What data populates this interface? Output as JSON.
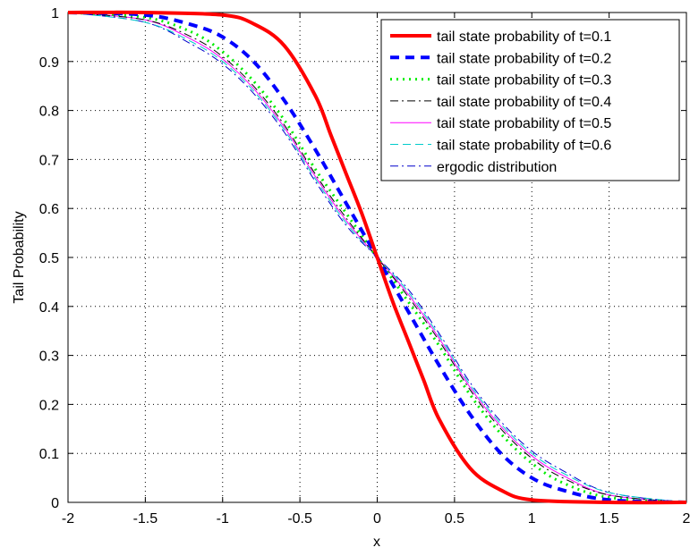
{
  "chart_data": {
    "type": "line",
    "title": "",
    "xlabel": "x",
    "ylabel": "Tail Probability",
    "xlim": [
      -2,
      2
    ],
    "ylim": [
      0,
      1
    ],
    "x_ticks": [
      -2,
      -1.5,
      -1,
      -0.5,
      0,
      0.5,
      1,
      1.5,
      2
    ],
    "y_ticks": [
      0,
      0.1,
      0.2,
      0.3,
      0.4,
      0.5,
      0.6,
      0.7,
      0.8,
      0.9,
      1
    ],
    "x_tick_labels": [
      "-2",
      "-1.5",
      "-1",
      "-0.5",
      "0",
      "0.5",
      "1",
      "1.5",
      "2"
    ],
    "y_tick_labels": [
      "0",
      "0.1",
      "0.2",
      "0.3",
      "0.4",
      "0.5",
      "0.6",
      "0.7",
      "0.8",
      "0.9",
      "1"
    ],
    "grid": true,
    "legend_position": "top-right",
    "series": [
      {
        "name": "tail state probability of t=0.1",
        "color": "#ff0000",
        "style": "solid",
        "x": [
          -2,
          -1.5,
          -1,
          -0.8,
          -0.6,
          -0.4,
          -0.3,
          -0.2,
          -0.1,
          0,
          0.1,
          0.2,
          0.3,
          0.4,
          0.6,
          0.8,
          1,
          1.5,
          2
        ],
        "y": [
          1,
          1,
          0.995,
          0.977,
          0.932,
          0.83,
          0.75,
          0.67,
          0.59,
          0.5,
          0.41,
          0.33,
          0.25,
          0.17,
          0.07,
          0.025,
          0.005,
          0,
          0
        ]
      },
      {
        "name": "tail state probability of t=0.2",
        "color": "#0000ff",
        "style": "dashed",
        "x": [
          -2,
          -1.5,
          -1.2,
          -1,
          -0.8,
          -0.6,
          -0.4,
          -0.2,
          0,
          0.2,
          0.4,
          0.6,
          0.8,
          1,
          1.2,
          1.5,
          2
        ],
        "y": [
          1,
          0.995,
          0.975,
          0.95,
          0.9,
          0.82,
          0.72,
          0.61,
          0.5,
          0.39,
          0.28,
          0.18,
          0.1,
          0.05,
          0.025,
          0.005,
          0
        ]
      },
      {
        "name": "tail state probability of t=0.3",
        "color": "#00ee00",
        "style": "dotted",
        "x": [
          -2,
          -1.5,
          -1.2,
          -1,
          -0.8,
          -0.6,
          -0.4,
          -0.2,
          0,
          0.2,
          0.4,
          0.6,
          0.8,
          1,
          1.2,
          1.5,
          2
        ],
        "y": [
          1,
          0.99,
          0.96,
          0.92,
          0.86,
          0.78,
          0.68,
          0.59,
          0.5,
          0.41,
          0.32,
          0.22,
          0.14,
          0.08,
          0.04,
          0.01,
          0
        ]
      },
      {
        "name": "tail state probability of t=0.4",
        "color": "#000000",
        "style": "dashdot",
        "x": [
          -2,
          -1.5,
          -1.2,
          -1,
          -0.8,
          -0.6,
          -0.4,
          -0.2,
          0,
          0.2,
          0.4,
          0.6,
          0.8,
          1,
          1.2,
          1.5,
          2
        ],
        "y": [
          1,
          0.985,
          0.95,
          0.91,
          0.85,
          0.77,
          0.67,
          0.58,
          0.5,
          0.42,
          0.33,
          0.23,
          0.15,
          0.09,
          0.05,
          0.015,
          0
        ]
      },
      {
        "name": "tail state probability of t=0.5",
        "color": "#ff00ff",
        "style": "solid-thin",
        "x": [
          -2,
          -1.5,
          -1.2,
          -1,
          -0.8,
          -0.6,
          -0.4,
          -0.2,
          0,
          0.2,
          0.4,
          0.6,
          0.8,
          1,
          1.2,
          1.5,
          2
        ],
        "y": [
          1,
          0.985,
          0.945,
          0.905,
          0.845,
          0.765,
          0.665,
          0.575,
          0.5,
          0.425,
          0.335,
          0.235,
          0.155,
          0.095,
          0.055,
          0.015,
          0
        ]
      },
      {
        "name": "tail state probability of t=0.6",
        "color": "#00cccc",
        "style": "dashed-thin",
        "x": [
          -2,
          -1.5,
          -1.2,
          -1,
          -0.8,
          -0.6,
          -0.4,
          -0.2,
          0,
          0.2,
          0.4,
          0.6,
          0.8,
          1,
          1.2,
          1.5,
          2
        ],
        "y": [
          1,
          0.98,
          0.94,
          0.9,
          0.84,
          0.76,
          0.66,
          0.57,
          0.5,
          0.43,
          0.34,
          0.24,
          0.16,
          0.1,
          0.06,
          0.02,
          0
        ]
      },
      {
        "name": "ergodic distribution",
        "color": "#0000cc",
        "style": "dashdot-thin",
        "x": [
          -2,
          -1.5,
          -1.2,
          -1,
          -0.8,
          -0.6,
          -0.4,
          -0.2,
          0,
          0.2,
          0.4,
          0.6,
          0.8,
          1,
          1.2,
          1.5,
          2
        ],
        "y": [
          1,
          0.98,
          0.935,
          0.895,
          0.835,
          0.755,
          0.655,
          0.565,
          0.5,
          0.435,
          0.345,
          0.245,
          0.165,
          0.105,
          0.065,
          0.02,
          0
        ]
      }
    ]
  }
}
